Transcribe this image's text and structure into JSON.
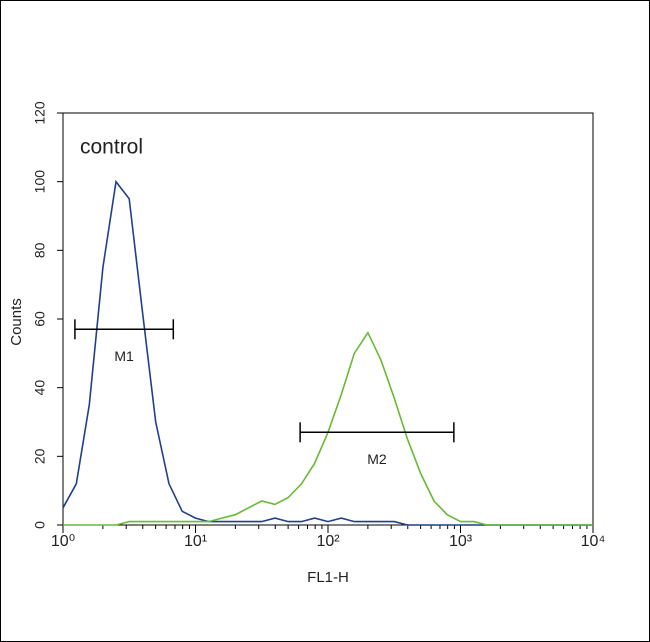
{
  "chart_data": {
    "type": "histogram-overlay",
    "xlabel": "FL1-H",
    "ylabel": "Counts",
    "xscale": "log",
    "xlim": [
      1,
      10000
    ],
    "ylim": [
      0,
      120
    ],
    "xticks": [
      {
        "value": 1,
        "label": "10⁰"
      },
      {
        "value": 10,
        "label": "10¹"
      },
      {
        "value": 100,
        "label": "10²"
      },
      {
        "value": 1000,
        "label": "10³"
      },
      {
        "value": 10000,
        "label": "10⁴"
      }
    ],
    "yticks": [
      0,
      20,
      40,
      60,
      80,
      100,
      120
    ],
    "x": [
      1,
      1.26,
      1.58,
      2,
      2.51,
      3.16,
      3.98,
      5.01,
      6.31,
      7.94,
      10,
      12.6,
      15.8,
      20,
      25.1,
      31.6,
      39.8,
      50.1,
      63.1,
      79.4,
      100,
      126,
      158,
      200,
      251,
      316,
      398,
      501,
      631,
      794,
      1000,
      1259,
      1585,
      1995,
      2512,
      3162,
      3981,
      5012,
      6310,
      7943,
      10000
    ],
    "series": [
      {
        "name": "control",
        "color": "#1f3f8f",
        "values": [
          5,
          12,
          35,
          75,
          100,
          95,
          62,
          30,
          12,
          4,
          2,
          1,
          1,
          1,
          1,
          1,
          2,
          1,
          1,
          2,
          1,
          2,
          1,
          1,
          1,
          1,
          0,
          0,
          0,
          0,
          0,
          0,
          0,
          0,
          0,
          0,
          0,
          0,
          0,
          0,
          0
        ]
      },
      {
        "color": "#66bb33",
        "values": [
          0,
          0,
          0,
          0,
          0,
          1,
          1,
          1,
          1,
          1,
          1,
          1,
          2,
          3,
          5,
          7,
          6,
          8,
          12,
          18,
          27,
          38,
          50,
          56,
          48,
          37,
          25,
          15,
          7,
          3,
          1,
          1,
          0,
          0,
          0,
          0,
          0,
          0,
          0,
          0,
          0
        ]
      }
    ],
    "markers": [
      {
        "label": "M1",
        "range": [
          1.23,
          6.8
        ],
        "y": 57
      },
      {
        "label": "M2",
        "range": [
          61.6,
          891
        ],
        "y": 27
      }
    ]
  }
}
